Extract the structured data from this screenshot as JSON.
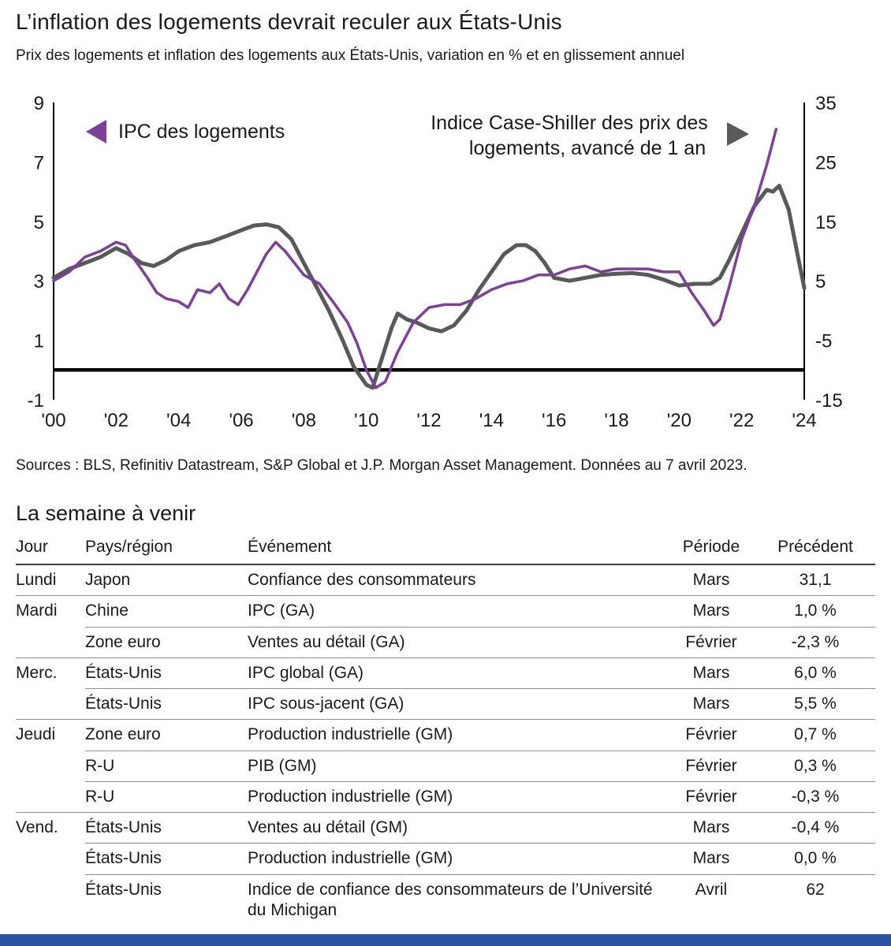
{
  "page": {
    "title": "L’inflation des logements devrait reculer aux États-Unis",
    "subtitle": "Prix des logements et inflation des logements aux États-Unis, variation en % et en glissement annuel",
    "source": "Sources : BLS, Refinitiv Datastream, S&P Global et J.P. Morgan Asset Management. Données au 7 avril 2023.",
    "accent_blue": "#2b53a5"
  },
  "chart_data": {
    "type": "line",
    "title": "Prix des logements et inflation des logements aux États-Unis",
    "left_axis": {
      "ticks": [
        9,
        7,
        5,
        3,
        1,
        -1
      ],
      "range": [
        -1,
        9
      ]
    },
    "right_axis": {
      "ticks": [
        35,
        25,
        15,
        5,
        -5,
        -15
      ],
      "range": [
        -15,
        35
      ]
    },
    "x_axis": {
      "range": [
        2000,
        2024
      ],
      "tick_values": [
        2000,
        2002,
        2004,
        2006,
        2008,
        2010,
        2012,
        2014,
        2016,
        2018,
        2020,
        2022,
        2024
      ],
      "tick_labels": [
        "'00",
        "'02",
        "'04",
        "'06",
        "'08",
        "'10",
        "'12",
        "'14",
        "'16",
        "'18",
        "'20",
        "'22",
        "'24"
      ]
    },
    "legend": {
      "left": "IPC des logements",
      "right_line1": "Indice Case-Shiller des prix des",
      "right_line2": "logements, avancé de 1 an"
    },
    "series": [
      {
        "name": "IPC des logements",
        "axis": "left",
        "color": "#7d3f98",
        "x": [
          2000,
          2000.5,
          2001,
          2001.5,
          2002,
          2002.3,
          2002.6,
          2003,
          2003.3,
          2003.6,
          2004,
          2004.3,
          2004.6,
          2005,
          2005.3,
          2005.6,
          2005.9,
          2006.2,
          2006.5,
          2006.8,
          2007.1,
          2007.4,
          2007.7,
          2008,
          2008.5,
          2009,
          2009.4,
          2009.7,
          2010,
          2010.3,
          2010.6,
          2011,
          2011.5,
          2012,
          2012.5,
          2013,
          2013.5,
          2014,
          2014.5,
          2015,
          2015.5,
          2016,
          2016.5,
          2017,
          2017.5,
          2018,
          2018.5,
          2019,
          2019.5,
          2020,
          2020.4,
          2020.8,
          2021.1,
          2021.3,
          2021.6,
          2022,
          2022.4,
          2022.8,
          2023.1
        ],
        "values": [
          3.0,
          3.3,
          3.8,
          4.0,
          4.3,
          4.2,
          3.7,
          3.1,
          2.6,
          2.4,
          2.3,
          2.1,
          2.7,
          2.6,
          2.9,
          2.4,
          2.2,
          2.7,
          3.3,
          3.9,
          4.3,
          4.0,
          3.6,
          3.2,
          2.9,
          2.2,
          1.6,
          0.9,
          0.0,
          -0.6,
          -0.4,
          0.6,
          1.6,
          2.1,
          2.2,
          2.2,
          2.4,
          2.7,
          2.9,
          3.0,
          3.2,
          3.2,
          3.4,
          3.5,
          3.3,
          3.4,
          3.4,
          3.4,
          3.3,
          3.3,
          2.6,
          2.0,
          1.5,
          1.7,
          2.8,
          4.4,
          5.5,
          6.9,
          8.1
        ]
      },
      {
        "name": "Indice Case-Shiller des prix des logements, avancé de 1 an",
        "axis": "right",
        "color": "#58595b",
        "x": [
          2000,
          2000.5,
          2001,
          2001.5,
          2002,
          2002.4,
          2002.8,
          2003.2,
          2003.6,
          2004,
          2004.5,
          2005,
          2005.5,
          2006,
          2006.4,
          2006.8,
          2007.2,
          2007.6,
          2008,
          2008.4,
          2008.8,
          2009.2,
          2009.6,
          2010,
          2010.2,
          2010.5,
          2010.8,
          2011,
          2011.3,
          2011.6,
          2012,
          2012.4,
          2012.8,
          2013.2,
          2013.6,
          2014,
          2014.4,
          2014.8,
          2015.1,
          2015.4,
          2015.7,
          2016,
          2016.5,
          2017,
          2017.5,
          2018,
          2018.5,
          2019,
          2019.5,
          2020,
          2020.5,
          2021,
          2021.3,
          2021.6,
          2022,
          2022.4,
          2022.8,
          2023,
          2023.2,
          2023.5,
          2023.8,
          2024
        ],
        "values": [
          5.5,
          7.0,
          8.0,
          9.0,
          10.5,
          9.5,
          8.0,
          7.5,
          8.5,
          10.0,
          11.0,
          11.5,
          12.5,
          13.5,
          14.3,
          14.5,
          14.0,
          12.0,
          8.0,
          4.0,
          0.0,
          -4.5,
          -9.5,
          -12.5,
          -13.0,
          -8.0,
          -3.0,
          -0.5,
          -1.5,
          -2.0,
          -3.0,
          -3.5,
          -2.5,
          0.0,
          3.5,
          6.5,
          9.5,
          11.0,
          11.0,
          10.0,
          8.0,
          5.5,
          5.0,
          5.5,
          6.0,
          6.2,
          6.3,
          6.0,
          5.2,
          4.2,
          4.5,
          4.5,
          5.5,
          8.5,
          13.0,
          17.5,
          20.3,
          20.0,
          21.0,
          17.0,
          9.0,
          3.8
        ]
      }
    ]
  },
  "week_ahead": {
    "title": "La semaine à venir",
    "columns": [
      "Jour",
      "Pays/région",
      "Événement",
      "Période",
      "Précédent"
    ],
    "rows": [
      {
        "day": "Lundi",
        "region": "Japon",
        "event": "Confiance des consommateurs",
        "period": "Mars",
        "previous": "31,1",
        "group_start": true
      },
      {
        "day": "Mardi",
        "region": "Chine",
        "event": "IPC (GA)",
        "period": "Mars",
        "previous": "1,0 %",
        "group_start": true
      },
      {
        "day": "",
        "region": "Zone euro",
        "event": "Ventes au détail (GA)",
        "period": "Février",
        "previous": "-2,3 %",
        "group_start": false
      },
      {
        "day": "Merc.",
        "region": "États-Unis",
        "event": "IPC global (GA)",
        "period": "Mars",
        "previous": "6,0 %",
        "group_start": true
      },
      {
        "day": "",
        "region": "États-Unis",
        "event": "IPC sous-jacent (GA)",
        "period": "Mars",
        "previous": "5,5 %",
        "group_start": false
      },
      {
        "day": "Jeudi",
        "region": "Zone euro",
        "event": "Production industrielle (GM)",
        "period": "Février",
        "previous": "0,7 %",
        "group_start": true
      },
      {
        "day": "",
        "region": "R-U",
        "event": "PIB (GM)",
        "period": "Février",
        "previous": "0,3 %",
        "group_start": false
      },
      {
        "day": "",
        "region": "R-U",
        "event": "Production industrielle (GM)",
        "period": "Février",
        "previous": "-0,3 %",
        "group_start": false
      },
      {
        "day": "Vend.",
        "region": "États-Unis",
        "event": "Ventes au détail (GM)",
        "period": "Mars",
        "previous": "-0,4 %",
        "group_start": true
      },
      {
        "day": "",
        "region": "États-Unis",
        "event": "Production industrielle (GM)",
        "period": "Mars",
        "previous": "0,0 %",
        "group_start": false
      },
      {
        "day": "",
        "region": "États-Unis",
        "event": "Indice de confiance des consommateurs de l’Université du Michigan",
        "period": "Avril",
        "previous": "62",
        "group_start": false
      }
    ]
  }
}
